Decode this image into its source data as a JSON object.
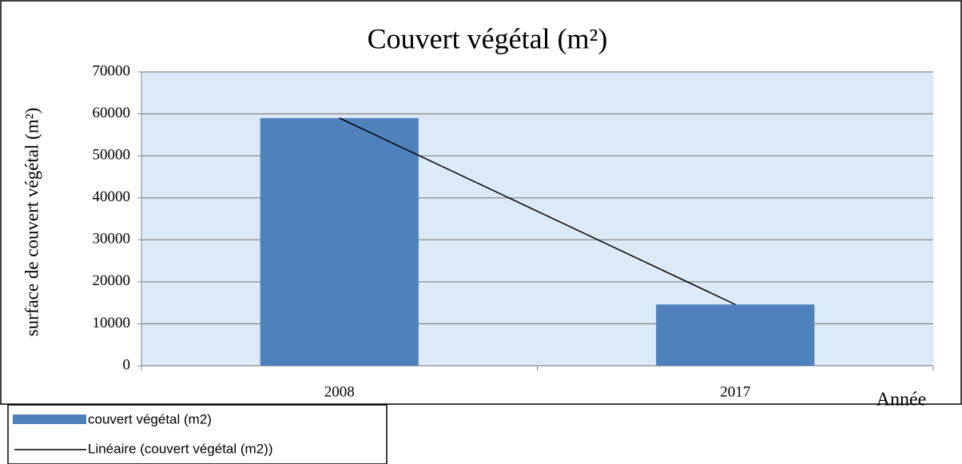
{
  "chart_data": {
    "type": "bar",
    "title": "Couvert végétal (m²)",
    "y_label": "surface de couvert végétal (m²)",
    "x_label": "Année",
    "categories": [
      "2008",
      "2017"
    ],
    "series": [
      {
        "name": "couvert végétal (m2)",
        "color": "#4f81bd",
        "values": [
          59000,
          14600
        ]
      }
    ],
    "trendline": {
      "name": "Linéaire (couvert végétal (m2))",
      "color": "#000000"
    },
    "ylim": [
      0,
      70000
    ],
    "yticks": [
      0,
      10000,
      20000,
      30000,
      40000,
      50000,
      60000,
      70000
    ],
    "grid": true,
    "legend": "bottom-left"
  }
}
